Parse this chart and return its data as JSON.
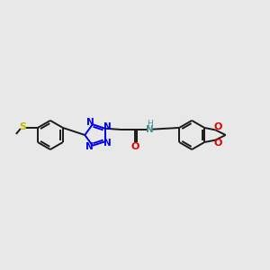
{
  "background_color": "#e8e8e8",
  "bond_color": "#1a1a1a",
  "n_color": "#0000ee",
  "o_color": "#dd0000",
  "s_color": "#bbbb00",
  "nh_color": "#4a9090",
  "line_width": 1.4,
  "figsize": [
    3.0,
    3.0
  ],
  "dpi": 100,
  "xlim": [
    0,
    12
  ],
  "ylim": [
    2,
    8
  ]
}
